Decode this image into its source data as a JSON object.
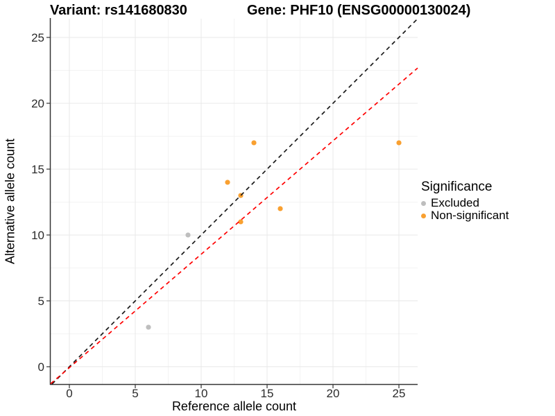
{
  "titles": {
    "left": "Variant: rs141680830",
    "right": "Gene: PHF10 (ENSG00000130024)"
  },
  "chart_data": {
    "type": "scatter",
    "xlabel": "Reference allele count",
    "ylabel": "Alternative allele count",
    "xlim": [
      -1.42,
      26.42
    ],
    "ylim": [
      -1.32,
      26.42
    ],
    "x_ticks": [
      0,
      5,
      10,
      15,
      20,
      25
    ],
    "y_ticks": [
      0,
      5,
      10,
      15,
      20,
      25
    ],
    "x_minor_ticks": [
      2.5,
      7.5,
      12.5,
      17.5,
      22.5
    ],
    "y_minor_ticks": [
      2.5,
      7.5,
      12.5,
      17.5,
      22.5
    ],
    "grid": true,
    "legend_position": "right",
    "series": [
      {
        "name": "Excluded",
        "color": "#BEBEBE",
        "points": [
          [
            6,
            3
          ],
          [
            9,
            10
          ]
        ]
      },
      {
        "name": "Non-significant",
        "color": "#F9A030",
        "points": [
          [
            12,
            14
          ],
          [
            13,
            13
          ],
          [
            13,
            11
          ],
          [
            14,
            17
          ],
          [
            16,
            12
          ],
          [
            25,
            17
          ]
        ]
      }
    ],
    "lines": [
      {
        "name": "identity-line",
        "slope": 1.0,
        "intercept": 0.0,
        "color": "#1A1A1A",
        "style": "dashed"
      },
      {
        "name": "fit-line",
        "slope": 0.861,
        "intercept": -0.07,
        "color": "#FF0000",
        "style": "dashed"
      }
    ],
    "legend": {
      "title": "Significance",
      "items": [
        {
          "label": "Excluded",
          "color": "#BEBEBE"
        },
        {
          "label": "Non-significant",
          "color": "#F9A030"
        }
      ]
    },
    "colors": {
      "major_grid": "#E8E8E8",
      "minor_grid": "#F3F3F3",
      "axis": "#333333",
      "tick_text": "#2B2B2B"
    }
  }
}
